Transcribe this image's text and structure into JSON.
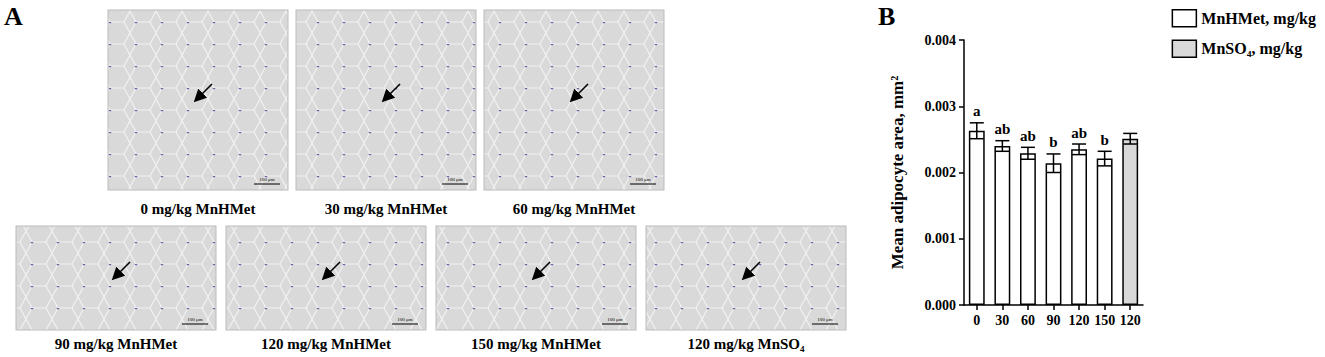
{
  "panel_labels": [
    "A",
    "B"
  ],
  "micrographs": {
    "scale_bar": "100 μm",
    "rows": [
      [
        "0 mg/kg MnHMet",
        "30 mg/kg MnHMet",
        "60 mg/kg MnHMet"
      ],
      [
        "90 mg/kg MnHMet",
        "120 mg/kg MnHMet",
        "150 mg/kg MnHMet",
        "120 mg/kg MnSO₄"
      ]
    ]
  },
  "chart_data": {
    "type": "bar",
    "y_label": "Mean adipocyte area, mm²",
    "categories": [
      "0",
      "30",
      "60",
      "90",
      "120",
      "150",
      "120"
    ],
    "series": [
      {
        "name": "MnHMet, mg/kg",
        "color": "#ffffff",
        "values": [
          0.00263,
          0.0024,
          0.00229,
          0.00214,
          0.00235,
          0.00221,
          null
        ],
        "errors": [
          0.00012,
          8e-05,
          9e-05,
          0.00014,
          8e-05,
          0.00011,
          null
        ],
        "letters": [
          "a",
          "ab",
          "ab",
          "b",
          "ab",
          "b",
          null
        ]
      },
      {
        "name": "MnSO₄, mg/kg",
        "color": "#d9d9d9",
        "values": [
          null,
          null,
          null,
          null,
          null,
          null,
          0.00251
        ],
        "errors": [
          null,
          null,
          null,
          null,
          null,
          null,
          8e-05
        ],
        "letters": [
          null,
          null,
          null,
          null,
          null,
          null,
          null
        ]
      }
    ],
    "ylim": [
      0,
      0.004
    ],
    "yticks": [
      {
        "value": 0,
        "label": "0.000"
      },
      {
        "value": 0.001,
        "label": "0.001"
      },
      {
        "value": 0.002,
        "label": "0.002"
      },
      {
        "value": 0.003,
        "label": "0.003"
      },
      {
        "value": 0.004,
        "label": "0.004"
      }
    ],
    "grid": false,
    "legend": "top-right"
  }
}
